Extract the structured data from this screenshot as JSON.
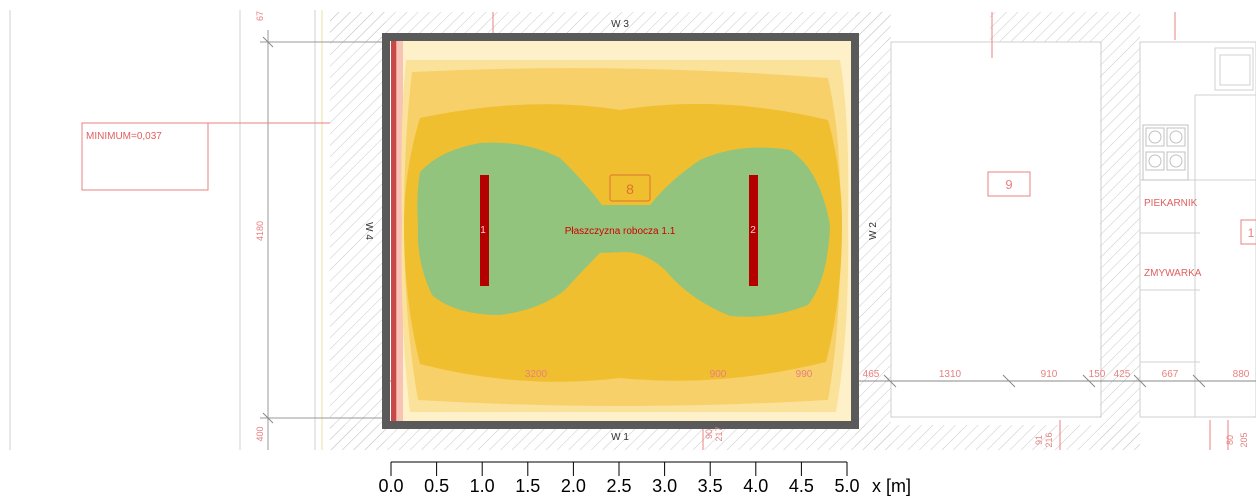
{
  "plan": {
    "room_number": "8",
    "neighbor_room_number": "9",
    "neighbor_room_number_partial": "1",
    "work_plane_label": "Płaszczyzna robocza 1.1",
    "minimum_label": "MINIMUM=0,037",
    "walls": {
      "top": "W 3",
      "bottom": "W 1",
      "left": "W 4",
      "right": "W 2"
    },
    "luminaires": [
      "1",
      "2"
    ],
    "appliances": [
      "PIEKARNIK",
      "ZMYWARKA"
    ],
    "dimensions_vertical": [
      "67",
      "4180",
      "400"
    ],
    "dimensions_horizontal": [
      "3200",
      "900",
      "990",
      "465",
      "1310",
      "910",
      "150",
      "425",
      "667",
      "880"
    ],
    "dimensions_bottom": [
      "90",
      "217",
      "91",
      "216",
      "80",
      "205"
    ]
  },
  "scale": {
    "unit_label": "x [m]",
    "ticks": [
      "0.0",
      "0.5",
      "1.0",
      "1.5",
      "2.0",
      "2.5",
      "3.0",
      "3.5",
      "4.0",
      "4.5",
      "5.0"
    ]
  },
  "colors": {
    "wall": "#5a5a5a",
    "zone_outer": "#fef0c8",
    "zone_light": "#fbe29a",
    "zone_mid": "#f7d06a",
    "zone_dark": "#f0bf30",
    "zone_green": "#93c47d",
    "luminaire": "#b40000",
    "annotation": "#e06060"
  }
}
